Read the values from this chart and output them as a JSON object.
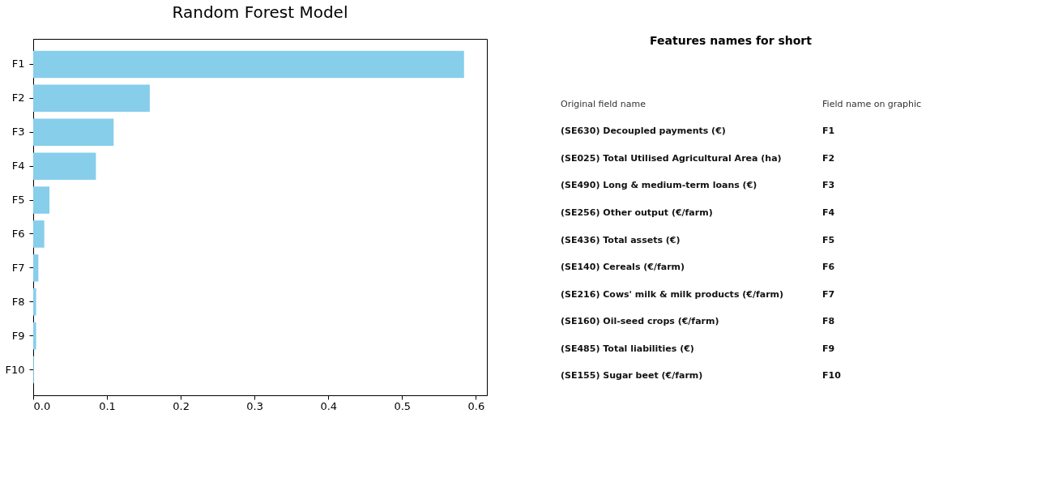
{
  "chart_data": [
    {
      "type": "bar",
      "title": "Random Forest Model",
      "orientation": "horizontal",
      "categories": [
        "F1",
        "F2",
        "F3",
        "F4",
        "F5",
        "F6",
        "F7",
        "F8",
        "F9",
        "F10"
      ],
      "values": [
        0.584,
        0.158,
        0.109,
        0.085,
        0.022,
        0.015,
        0.007,
        0.004,
        0.004,
        0.001
      ],
      "color": "#87ceeb",
      "xlim": [
        0,
        0.615
      ],
      "xticks": [
        {
          "value": 0,
          "label": "0.0"
        },
        0.1,
        0.2,
        0.3,
        0.4,
        0.5,
        0.6
      ],
      "grid": false
    },
    {
      "type": "other",
      "title": "Features names for short",
      "annotations": [
        "Original field name",
        "Field name on graphic",
        "(SE630) Decoupled payments (€)",
        "F1",
        "(SE025) Total Utilised Agricultural Area (ha)",
        "F2",
        "(SE490) Long & medium-term loans (€)",
        "F3",
        "(SE256) Other output (€/farm)",
        "F4",
        "(SE436) Total assets (€)",
        "F5",
        "(SE140) Cereals (€/farm)",
        "F6",
        "(SE216) Cows' milk & milk products (€/farm)",
        "F7",
        "(SE160) Oil-seed crops (€/farm)",
        "F8",
        "(SE485) Total liabilities (€)",
        "F9",
        "(SE155) Sugar beet (€/farm)",
        "F10"
      ]
    }
  ]
}
